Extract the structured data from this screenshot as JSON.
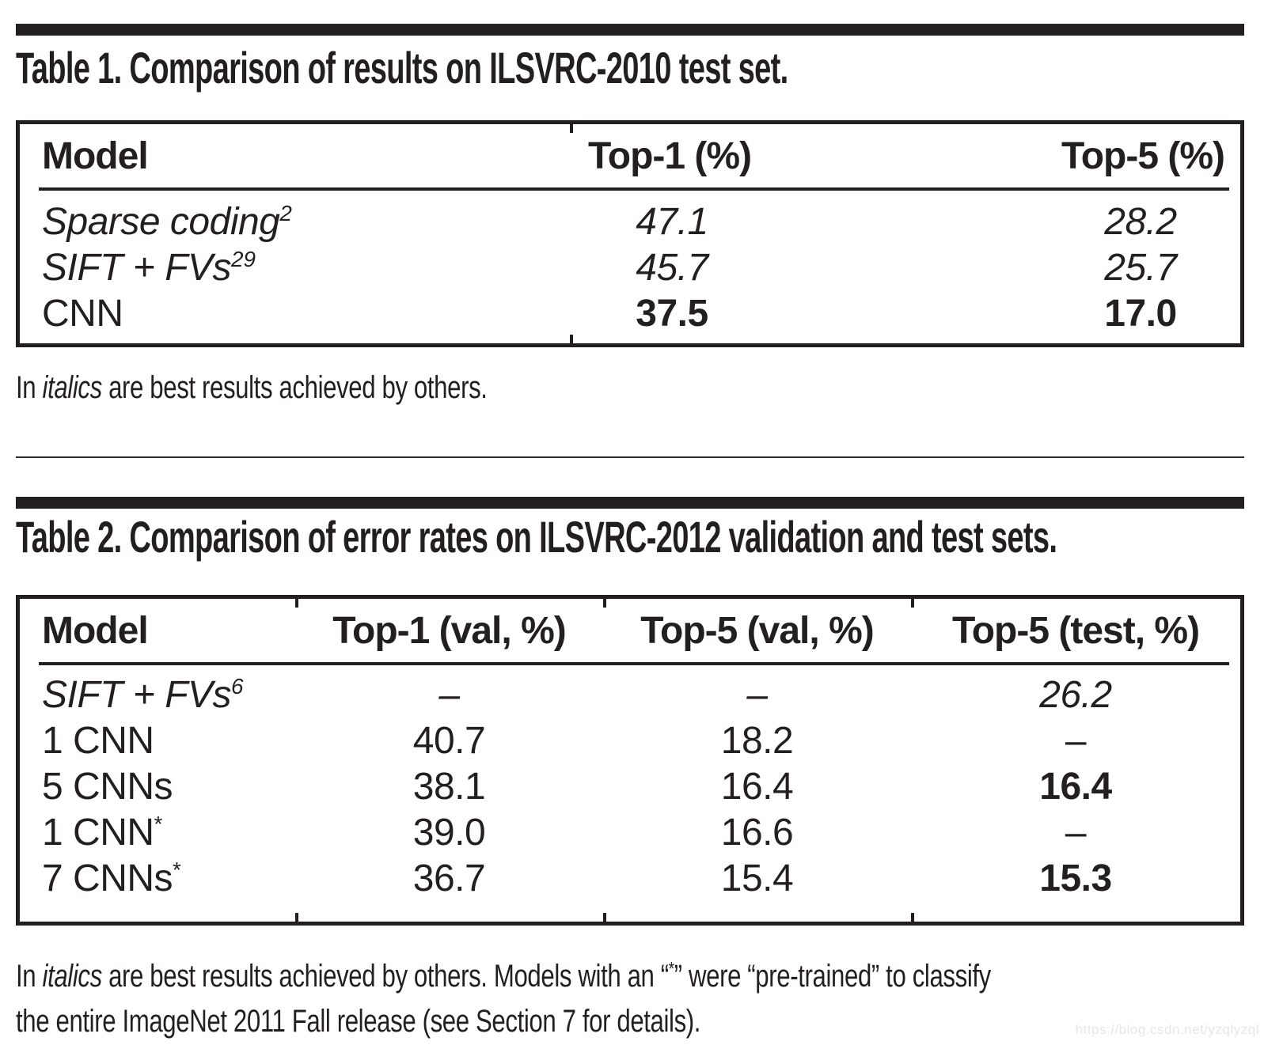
{
  "colors": {
    "ink": "#231f20",
    "watermark_gray": "#e7e7e7"
  },
  "watermark": "https://blog.csdn.net/yzqlyzql",
  "table1": {
    "title": "Table 1. Comparison of results on ILSVRC-2010 test set.",
    "headers": [
      "Model",
      "Top-1 (%)",
      "Top-5 (%)"
    ],
    "rows": [
      {
        "model": "Sparse coding",
        "sup": "2",
        "model_style": "italic",
        "cells": [
          {
            "text": "47.1",
            "style": "italic"
          },
          {
            "text": "28.2",
            "style": "italic"
          }
        ]
      },
      {
        "model": "SIFT + FVs",
        "sup": "29",
        "model_style": "italic",
        "cells": [
          {
            "text": "45.7",
            "style": "italic"
          },
          {
            "text": "25.7",
            "style": "italic"
          }
        ]
      },
      {
        "model": "CNN",
        "sup": "",
        "model_style": "normal",
        "cells": [
          {
            "text": "37.5",
            "style": "bold"
          },
          {
            "text": "17.0",
            "style": "bold"
          }
        ]
      }
    ],
    "caption_segments": [
      {
        "text": "In ",
        "style": "normal"
      },
      {
        "text": "italics",
        "style": "italic"
      },
      {
        "text": " are best results achieved by others.",
        "style": "normal"
      }
    ]
  },
  "table2": {
    "title": "Table 2. Comparison of error rates on ILSVRC-2012 validation and test sets.",
    "headers": [
      "Model",
      "Top-1 (val, %)",
      "Top-5 (val, %)",
      "Top-5 (test, %)"
    ],
    "rows": [
      {
        "model": "SIFT + FVs",
        "sup": "6",
        "model_style": "italic",
        "cells": [
          {
            "text": "–",
            "style": "italic"
          },
          {
            "text": "–",
            "style": "italic"
          },
          {
            "text": "26.2",
            "style": "italic"
          }
        ]
      },
      {
        "model": "1 CNN",
        "sup": "",
        "model_style": "normal",
        "cells": [
          {
            "text": "40.7",
            "style": "normal"
          },
          {
            "text": "18.2",
            "style": "normal"
          },
          {
            "text": "–",
            "style": "normal"
          }
        ]
      },
      {
        "model": "5 CNNs",
        "sup": "",
        "model_style": "normal",
        "cells": [
          {
            "text": "38.1",
            "style": "normal"
          },
          {
            "text": "16.4",
            "style": "normal"
          },
          {
            "text": "16.4",
            "style": "bold"
          }
        ]
      },
      {
        "model": "1 CNN",
        "sup": "*",
        "model_style": "normal",
        "cells": [
          {
            "text": "39.0",
            "style": "normal"
          },
          {
            "text": "16.6",
            "style": "normal"
          },
          {
            "text": "–",
            "style": "normal"
          }
        ]
      },
      {
        "model": "7 CNNs",
        "sup": "*",
        "model_style": "normal",
        "cells": [
          {
            "text": "36.7",
            "style": "normal"
          },
          {
            "text": "15.4",
            "style": "normal"
          },
          {
            "text": "15.3",
            "style": "bold"
          }
        ]
      }
    ],
    "caption_segments": [
      {
        "text": "In ",
        "style": "normal"
      },
      {
        "text": "italics",
        "style": "italic"
      },
      {
        "text": " are best results achieved by others. Models with an “",
        "style": "normal"
      },
      {
        "text": "*",
        "style": "sup"
      },
      {
        "text": "” were “pre-trained” to classify",
        "style": "normal"
      },
      {
        "text": "",
        "style": "br"
      },
      {
        "text": "the entire ImageNet 2011 Fall release (see Section 7 for details).",
        "style": "normal"
      }
    ]
  }
}
